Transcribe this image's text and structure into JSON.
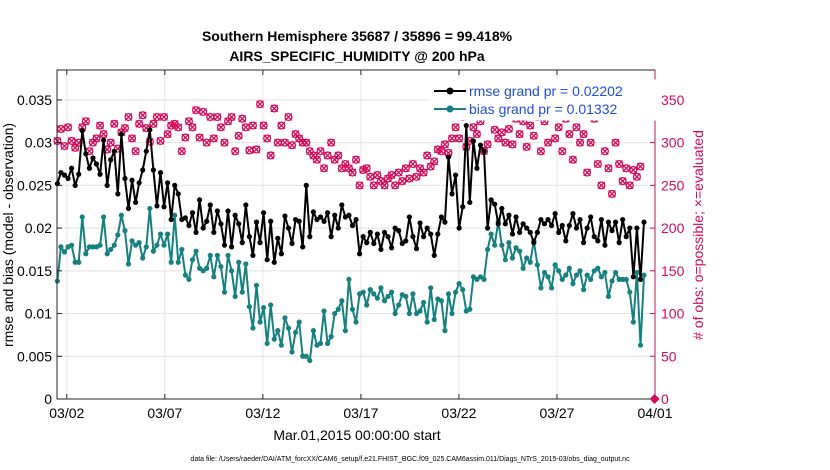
{
  "title_line1": "Southern Hemisphere 35687 / 35896 = 99.418%",
  "title_line2": "AIRS_SPECIFIC_HUMIDITY @ 200 hPa",
  "footnote": "data file: /Users/raeder/DAI/ATM_forcXX/CAM6_setup/f.e21.FHIST_BGC.f09_025.CAM6assim.011/Diags_NTrS_2015-03/obs_diag_output.nc",
  "colors": {
    "rmse": "#000000",
    "bias": "#178080",
    "obs": "#d40b5a",
    "legend_text": "#1f4fd8",
    "grid": "#e6e6e6"
  },
  "chart_data": {
    "type": "line",
    "xlabel": "Mar.01,2015 00:00:00 start",
    "ylabel_left": "rmse and bias (model - observation)",
    "ylabel_right": "# of obs: o=possible; ×=evaluated",
    "x_range": [
      0.5,
      31.0
    ],
    "x_unit": "days since Mar.01,2015 00:00:00",
    "x_ticks": [
      1,
      6,
      11,
      16,
      21,
      26,
      31
    ],
    "x_tick_labels": [
      "03/02",
      "03/07",
      "03/12",
      "03/17",
      "03/22",
      "03/27",
      "04/01"
    ],
    "ylim_left": [
      0,
      0.0385
    ],
    "y_ticks_left": [
      0,
      0.005,
      0.01,
      0.015,
      0.02,
      0.025,
      0.03,
      0.035
    ],
    "y_tick_labels_left": [
      "0",
      "0.005",
      "0.01",
      "0.015",
      "0.02",
      "0.025",
      "0.03",
      "0.035"
    ],
    "ylim_right": [
      0,
      385
    ],
    "y_ticks_right": [
      0,
      50,
      100,
      150,
      200,
      250,
      300,
      350
    ],
    "y_tick_labels_right": [
      "0",
      "50",
      "100",
      "150",
      "200",
      "250",
      "300",
      "350"
    ],
    "grid": true,
    "legend_position": "top-right",
    "series": [
      {
        "name": "rmse grand pr = 0.02202",
        "axis": "left",
        "values": [
          0.0252,
          0.0265,
          0.0262,
          0.0258,
          0.027,
          0.025,
          0.0263,
          0.0314,
          0.0287,
          0.027,
          0.0282,
          0.0275,
          0.0263,
          0.0303,
          0.025,
          0.028,
          0.029,
          0.024,
          0.031,
          0.0258,
          0.0223,
          0.0256,
          0.023,
          0.0253,
          0.0268,
          0.029,
          0.0315,
          0.0268,
          0.0226,
          0.0265,
          0.0225,
          0.0253,
          0.021,
          0.025,
          0.024,
          0.021,
          0.0212,
          0.0203,
          0.0218,
          0.0195,
          0.0233,
          0.02,
          0.0208,
          0.0227,
          0.0195,
          0.022,
          0.0205,
          0.018,
          0.022,
          0.0178,
          0.0215,
          0.0205,
          0.0183,
          0.0227,
          0.019,
          0.0168,
          0.0207,
          0.0183,
          0.0218,
          0.0163,
          0.0208,
          0.016,
          0.0188,
          0.017,
          0.0214,
          0.02,
          0.0182,
          0.021,
          0.0208,
          0.0178,
          0.025,
          0.019,
          0.0219,
          0.021,
          0.0213,
          0.0208,
          0.0218,
          0.019,
          0.0215,
          0.02,
          0.0227,
          0.0213,
          0.0215,
          0.0203,
          0.021,
          0.017,
          0.019,
          0.0183,
          0.0195,
          0.0182,
          0.0193,
          0.0175,
          0.0195,
          0.019,
          0.0177,
          0.02,
          0.0197,
          0.0182,
          0.0185,
          0.0213,
          0.019,
          0.0176,
          0.0206,
          0.019,
          0.02,
          0.0193,
          0.0168,
          0.0193,
          0.0213,
          0.0207,
          0.0283,
          0.024,
          0.0262,
          0.02,
          0.0225,
          0.032,
          0.023,
          0.0302,
          0.027,
          0.0297,
          0.029,
          0.02,
          0.0233,
          0.0228,
          0.0205,
          0.0223,
          0.0205,
          0.0215,
          0.0193,
          0.0213,
          0.0195,
          0.0205,
          0.02,
          0.0195,
          0.0183,
          0.0195,
          0.021,
          0.0205,
          0.021,
          0.0203,
          0.0217,
          0.0195,
          0.0203,
          0.0185,
          0.0203,
          0.0217,
          0.02,
          0.021,
          0.0183,
          0.02,
          0.0213,
          0.019,
          0.0185,
          0.021,
          0.018,
          0.0207,
          0.0197,
          0.0207,
          0.0183,
          0.021,
          0.019,
          0.02,
          0.0143,
          0.02,
          0.014,
          0.0207
        ]
      },
      {
        "name": "bias grand pr = 0.01332",
        "axis": "left",
        "values": [
          0.0138,
          0.0178,
          0.0172,
          0.0178,
          0.018,
          0.016,
          0.016,
          0.0213,
          0.017,
          0.0178,
          0.0178,
          0.0178,
          0.018,
          0.0213,
          0.017,
          0.0175,
          0.018,
          0.0192,
          0.0215,
          0.0197,
          0.0158,
          0.0185,
          0.018,
          0.0183,
          0.0165,
          0.0178,
          0.0223,
          0.0173,
          0.018,
          0.0193,
          0.018,
          0.0193,
          0.016,
          0.0215,
          0.016,
          0.0175,
          0.0145,
          0.014,
          0.0163,
          0.0173,
          0.0153,
          0.015,
          0.0153,
          0.0168,
          0.0143,
          0.0168,
          0.0155,
          0.0125,
          0.0168,
          0.015,
          0.012,
          0.016,
          0.0125,
          0.0158,
          0.0108,
          0.0083,
          0.0133,
          0.009,
          0.0107,
          0.0065,
          0.011,
          0.007,
          0.008,
          0.0063,
          0.0095,
          0.0083,
          0.0055,
          0.0078,
          0.009,
          0.005,
          0.005,
          0.0045,
          0.008,
          0.0063,
          0.0065,
          0.0103,
          0.0065,
          0.0073,
          0.01,
          0.0105,
          0.0115,
          0.008,
          0.014,
          0.0105,
          0.009,
          0.0123,
          0.0125,
          0.011,
          0.0128,
          0.0123,
          0.0118,
          0.013,
          0.0115,
          0.012,
          0.0125,
          0.01,
          0.011,
          0.0122,
          0.012,
          0.01,
          0.0123,
          0.01,
          0.0103,
          0.0113,
          0.009,
          0.013,
          0.0093,
          0.0117,
          0.0115,
          0.008,
          0.0123,
          0.01,
          0.0125,
          0.0135,
          0.0128,
          0.0103,
          0.0105,
          0.0143,
          0.014,
          0.0143,
          0.014,
          0.0175,
          0.0193,
          0.018,
          0.0208,
          0.018,
          0.0163,
          0.0183,
          0.0165,
          0.0177,
          0.0173,
          0.0153,
          0.0165,
          0.016,
          0.0185,
          0.0157,
          0.013,
          0.0148,
          0.0143,
          0.013,
          0.0157,
          0.015,
          0.014,
          0.0145,
          0.0153,
          0.0135,
          0.0145,
          0.015,
          0.0128,
          0.0145,
          0.014,
          0.015,
          0.0153,
          0.0143,
          0.0148,
          0.012,
          0.0138,
          0.0148,
          0.014,
          0.014,
          0.014,
          0.0125,
          0.009,
          0.0148,
          0.0063,
          0.0145
        ]
      }
    ],
    "obs_counts": {
      "axis": "right",
      "markers": "o = possible, × = evaluated",
      "values": [
        302,
        316,
        296,
        318,
        302,
        294,
        300,
        318,
        325,
        290,
        300,
        305,
        320,
        310,
        292,
        300,
        322,
        293,
        312,
        317,
        330,
        305,
        290,
        322,
        332,
        317,
        301,
        322,
        330,
        302,
        330,
        310,
        320,
        322,
        318,
        290,
        306,
        325,
        318,
        338,
        306,
        336,
        300,
        330,
        305,
        330,
        318,
        300,
        325,
        330,
        290,
        308,
        328,
        318,
        291,
        320,
        292,
        345,
        320,
        305,
        285,
        340,
        300,
        320,
        300,
        330,
        297,
        310,
        305,
        300,
        300,
        290,
        285,
        280,
        290,
        270,
        285,
        300,
        280,
        285,
        270,
        275,
        270,
        265,
        280,
        250,
        268,
        270,
        260,
        250,
        262,
        255,
        250,
        258,
        262,
        250,
        265,
        255,
        270,
        258,
        275,
        260,
        270,
        265,
        285,
        272,
        278,
        292,
        290,
        298,
        288,
        305,
        318,
        305,
        330,
        295,
        302,
        318,
        310,
        325,
        290,
        298,
        340,
        315,
        305,
        312,
        300,
        316,
        298,
        328,
        310,
        325,
        295,
        320,
        308,
        330,
        290,
        325,
        300,
        335,
        305,
        318,
        290,
        328,
        310,
        280,
        318,
        300,
        310,
        265,
        300,
        328,
        275,
        250,
        290,
        270,
        240,
        300,
        275,
        255,
        270,
        250,
        268,
        260,
        272
      ]
    }
  }
}
